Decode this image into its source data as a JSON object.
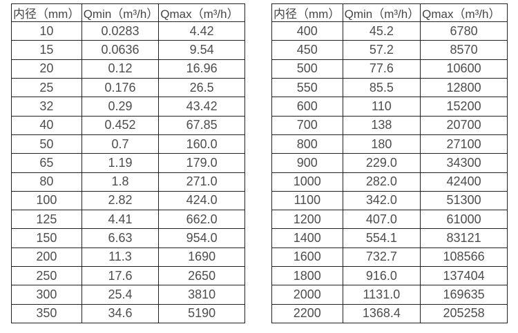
{
  "colors": {
    "background": "#ffffff",
    "border": "#1f1f1f",
    "text": "#4d4d4d"
  },
  "tables": [
    {
      "name": "flow-spec-table-small-diameters",
      "headers": [
        "内径（mm）",
        "Qmin（m³/h）",
        "Qmax（m³/h）"
      ],
      "rows": [
        [
          "10",
          "0.0283",
          "4.42"
        ],
        [
          "15",
          "0.0636",
          "9.54"
        ],
        [
          "20",
          "0.12",
          "16.96"
        ],
        [
          "25",
          "0.176",
          "26.5"
        ],
        [
          "32",
          "0.29",
          "43.42"
        ],
        [
          "40",
          "0.452",
          "67.85"
        ],
        [
          "50",
          "0.7",
          "160.0"
        ],
        [
          "65",
          "1.19",
          "179.0"
        ],
        [
          "80",
          "1.8",
          "271.0"
        ],
        [
          "100",
          "2.82",
          "424.0"
        ],
        [
          "125",
          "4.41",
          "662.0"
        ],
        [
          "150",
          "6.63",
          "954.0"
        ],
        [
          "200",
          "11.3",
          "1690"
        ],
        [
          "250",
          "17.6",
          "2650"
        ],
        [
          "300",
          "25.4",
          "3810"
        ],
        [
          "350",
          "34.6",
          "5190"
        ]
      ]
    },
    {
      "name": "flow-spec-table-large-diameters",
      "headers": [
        "内径（mm）",
        "Qmin（m³/h）",
        "Qmax（m³/h）"
      ],
      "rows": [
        [
          "400",
          "45.2",
          "6780"
        ],
        [
          "450",
          "57.2",
          "8570"
        ],
        [
          "500",
          "77.6",
          "10600"
        ],
        [
          "550",
          "85.5",
          "12800"
        ],
        [
          "600",
          "110",
          "15200"
        ],
        [
          "700",
          "138",
          "20700"
        ],
        [
          "800",
          "180",
          "27100"
        ],
        [
          "900",
          "229.0",
          "34300"
        ],
        [
          "1000",
          "282.0",
          "42400"
        ],
        [
          "1100",
          "342.0",
          "51300"
        ],
        [
          "1200",
          "407.0",
          "61000"
        ],
        [
          "1400",
          "554.1",
          "83121"
        ],
        [
          "1600",
          "732.7",
          "108566"
        ],
        [
          "1800",
          "916.0",
          "137404"
        ],
        [
          "2000",
          "1131.0",
          "169635"
        ],
        [
          "2200",
          "1368.4",
          "205258"
        ]
      ]
    }
  ]
}
